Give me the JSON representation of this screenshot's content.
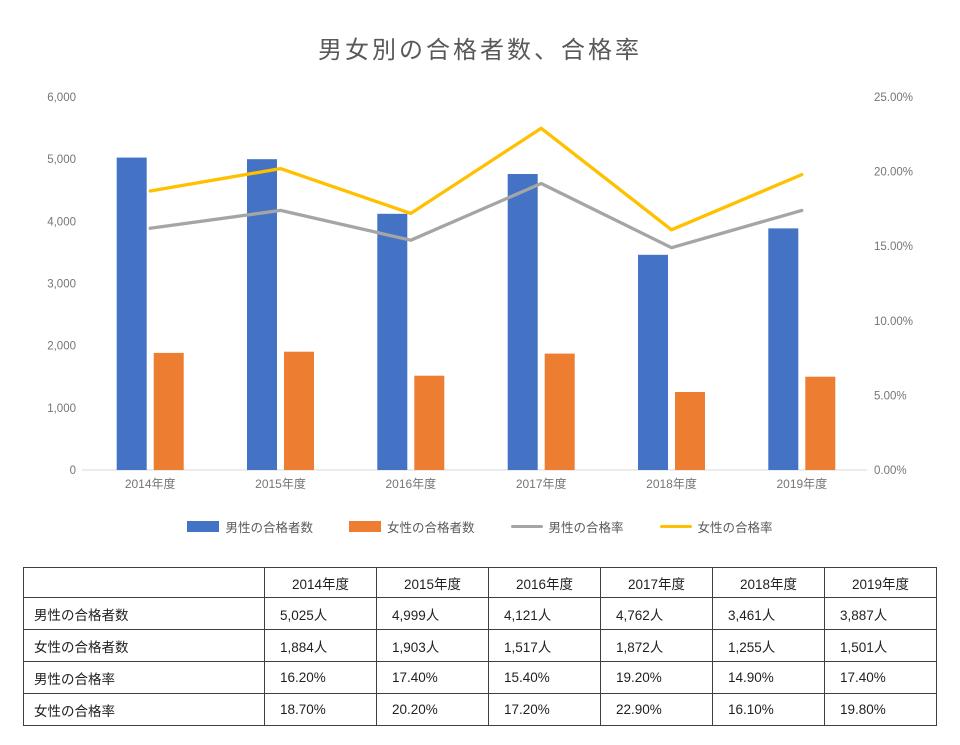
{
  "title": "男女別の合格者数、合格率",
  "chart_data": {
    "type": "bar+line combo",
    "title": "男女別の合格者数、合格率",
    "categories": [
      "2014年度",
      "2015年度",
      "2016年度",
      "2017年度",
      "2018年度",
      "2019年度"
    ],
    "series": [
      {
        "name": "男性の合格者数",
        "type": "bar",
        "axis": "left",
        "color": "#4472C4",
        "values": [
          5025,
          4999,
          4121,
          4762,
          3461,
          3887
        ]
      },
      {
        "name": "女性の合格者数",
        "type": "bar",
        "axis": "left",
        "color": "#ED7D31",
        "values": [
          1884,
          1903,
          1517,
          1872,
          1255,
          1501
        ]
      },
      {
        "name": "男性の合格率",
        "type": "line",
        "axis": "right",
        "color": "#A5A5A5",
        "values": [
          16.2,
          17.4,
          15.4,
          19.2,
          14.9,
          17.4
        ]
      },
      {
        "name": "女性の合格率",
        "type": "line",
        "axis": "right",
        "color": "#FFC000",
        "values": [
          18.7,
          20.2,
          17.2,
          22.9,
          16.1,
          19.8
        ]
      }
    ],
    "left_axis": {
      "min": 0,
      "max": 6000,
      "step": 1000,
      "tick_labels": [
        "0",
        "1,000",
        "2,000",
        "3,000",
        "4,000",
        "5,000",
        "6,000"
      ]
    },
    "right_axis": {
      "min": 0,
      "max": 25,
      "step": 5,
      "tick_labels": [
        "0.00%",
        "5.00%",
        "10.00%",
        "15.00%",
        "20.00%",
        "25.00%"
      ]
    },
    "grid": false,
    "legend_position": "bottom",
    "axis_line_color": "#D9D9D9",
    "axis_text_color": "#757575"
  },
  "table": {
    "header": [
      "",
      "2014年度",
      "2015年度",
      "2016年度",
      "2017年度",
      "2018年度",
      "2019年度"
    ],
    "rows": [
      {
        "label": "男性の合格者数",
        "values": [
          "5,025人",
          "4,999人",
          "4,121人",
          "4,762人",
          "3,461人",
          "3,887人"
        ]
      },
      {
        "label": "女性の合格者数",
        "values": [
          "1,884人",
          "1,903人",
          "1,517人",
          "1,872人",
          "1,255人",
          "1,501人"
        ]
      },
      {
        "label": "男性の合格率",
        "values": [
          "16.20%",
          "17.40%",
          "15.40%",
          "19.20%",
          "14.90%",
          "17.40%"
        ]
      },
      {
        "label": "女性の合格率",
        "values": [
          "18.70%",
          "20.20%",
          "17.20%",
          "22.90%",
          "16.10%",
          "19.80%"
        ]
      }
    ]
  }
}
